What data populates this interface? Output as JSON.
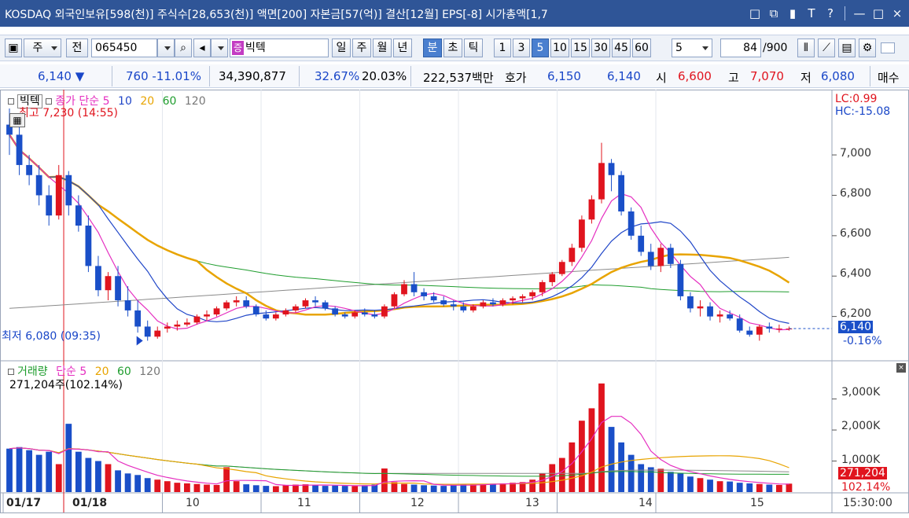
{
  "titlebar": {
    "title": "KOSDAQ 외국인보유[598(천)] 주식수[28,653(천)] 액면[200] 자본금[57(억)] 결산[12월] EPS[-8] 시가총액[1,7",
    "buttons": [
      "□",
      "⧉",
      "▮",
      "T",
      "?",
      "—",
      "□",
      "×"
    ]
  },
  "toolbar": {
    "mode_item": "주",
    "all_label": "전",
    "code": "065450",
    "stock_badge": "증",
    "stock_name": "빅텍",
    "periods": [
      "일",
      "주",
      "월",
      "년",
      "분",
      "초",
      "틱"
    ],
    "active_period": "분",
    "intervals": [
      "1",
      "3",
      "5",
      "10",
      "15",
      "30",
      "45",
      "60"
    ],
    "active_interval": "5",
    "interval_value": "5",
    "count": "84",
    "count_total": "/900"
  },
  "quote": {
    "price": "6,140 ▼",
    "change": "760 -11.01%",
    "volume": "34,390,877",
    "ratio1": "32.67%",
    "ratio2": "20.03%",
    "amount": "222,537백만",
    "hoga_label": "호가",
    "ask": "6,150",
    "bid": "6,140",
    "open_label": "시",
    "open": "6,600",
    "high_label": "고",
    "high": "7,070",
    "low_label": "저",
    "low": "6,080",
    "trade_label": "매수"
  },
  "colors": {
    "up": "#e0141e",
    "down": "#1a4fc8",
    "ma5": "#e52ec0",
    "ma10": "#2046c8",
    "ma20": "#e8a400",
    "ma60": "#1f9d2e",
    "ma120": "#8a8a8a"
  },
  "chart": {
    "price_legend": {
      "name": "빅텍",
      "item": "종가 단순",
      "periods": [
        "5",
        "10",
        "20",
        "60",
        "120"
      ]
    },
    "max_label": "최고 7,230 (14:55)",
    "min_label": "최저 6,080 (09:35)",
    "lc": "LC:0.99",
    "hc": "HC:-15.08",
    "current_price_tag": "6,140",
    "current_pct_tag": "-0.16%",
    "price_axis": [
      "7,000",
      "6,800",
      "6,600",
      "6,400",
      "6,200"
    ],
    "volume_legend": {
      "name": "거래량",
      "item": "단순",
      "periods": [
        "5",
        "20",
        "60",
        "120"
      ]
    },
    "volume_value": "271,204주(102.14%)",
    "volume_axis": [
      "3,000K",
      "2,000K",
      "1,000K"
    ],
    "current_volume_tag": "271,204",
    "current_volume_pct": "102.14%",
    "date_axis": [
      "01/17",
      "01/18",
      "10",
      "11",
      "12",
      "13",
      "14",
      "15"
    ],
    "time_label": "15:30:00"
  },
  "chart_data": {
    "type": "candlestick",
    "interval": "5분",
    "price_ylim": [
      6000,
      7300
    ],
    "volume_ylim": [
      0,
      3800
    ],
    "candles": [
      [
        7150,
        7230,
        7000,
        7100
      ],
      [
        7100,
        7150,
        6900,
        6950
      ],
      [
        6950,
        7000,
        6850,
        6900
      ],
      [
        6900,
        6950,
        6750,
        6800
      ],
      [
        6800,
        6850,
        6650,
        6700
      ],
      [
        6700,
        6950,
        6680,
        6900
      ],
      [
        6900,
        6920,
        6700,
        6750
      ],
      [
        6750,
        6800,
        6620,
        6650
      ],
      [
        6650,
        6700,
        6420,
        6450
      ],
      [
        6450,
        6500,
        6300,
        6330
      ],
      [
        6330,
        6420,
        6280,
        6400
      ],
      [
        6400,
        6450,
        6250,
        6280
      ],
      [
        6280,
        6350,
        6200,
        6230
      ],
      [
        6230,
        6280,
        6120,
        6150
      ],
      [
        6150,
        6180,
        6080,
        6100
      ],
      [
        6100,
        6150,
        6090,
        6130
      ],
      [
        6140,
        6170,
        6120,
        6150
      ],
      [
        6150,
        6180,
        6130,
        6160
      ],
      [
        6160,
        6190,
        6150,
        6170
      ],
      [
        6170,
        6210,
        6160,
        6200
      ],
      [
        6200,
        6230,
        6180,
        6210
      ],
      [
        6210,
        6250,
        6200,
        6240
      ],
      [
        6240,
        6280,
        6230,
        6270
      ],
      [
        6270,
        6300,
        6250,
        6280
      ],
      [
        6280,
        6300,
        6240,
        6250
      ],
      [
        6250,
        6260,
        6200,
        6210
      ],
      [
        6210,
        6230,
        6180,
        6190
      ],
      [
        6190,
        6220,
        6180,
        6210
      ],
      [
        6210,
        6240,
        6200,
        6230
      ],
      [
        6230,
        6260,
        6220,
        6250
      ],
      [
        6250,
        6290,
        6240,
        6280
      ],
      [
        6280,
        6300,
        6250,
        6270
      ],
      [
        6270,
        6280,
        6230,
        6240
      ],
      [
        6240,
        6250,
        6200,
        6210
      ],
      [
        6210,
        6220,
        6190,
        6200
      ],
      [
        6200,
        6230,
        6190,
        6220
      ],
      [
        6220,
        6240,
        6200,
        6210
      ],
      [
        6210,
        6230,
        6190,
        6200
      ],
      [
        6200,
        6260,
        6190,
        6250
      ],
      [
        6250,
        6320,
        6240,
        6310
      ],
      [
        6310,
        6380,
        6300,
        6360
      ],
      [
        6360,
        6420,
        6300,
        6320
      ],
      [
        6320,
        6340,
        6280,
        6300
      ],
      [
        6300,
        6320,
        6270,
        6280
      ],
      [
        6280,
        6300,
        6250,
        6260
      ],
      [
        6260,
        6280,
        6230,
        6250
      ],
      [
        6250,
        6270,
        6220,
        6230
      ],
      [
        6230,
        6260,
        6220,
        6250
      ],
      [
        6250,
        6280,
        6240,
        6270
      ],
      [
        6270,
        6290,
        6250,
        6260
      ],
      [
        6260,
        6290,
        6250,
        6280
      ],
      [
        6280,
        6300,
        6260,
        6290
      ],
      [
        6290,
        6310,
        6270,
        6300
      ],
      [
        6300,
        6330,
        6280,
        6320
      ],
      [
        6320,
        6380,
        6300,
        6370
      ],
      [
        6370,
        6420,
        6350,
        6410
      ],
      [
        6410,
        6480,
        6400,
        6470
      ],
      [
        6470,
        6560,
        6450,
        6540
      ],
      [
        6540,
        6700,
        6520,
        6680
      ],
      [
        6680,
        6800,
        6660,
        6780
      ],
      [
        6780,
        7060,
        6760,
        6960
      ],
      [
        6960,
        6980,
        6820,
        6900
      ],
      [
        6900,
        6920,
        6700,
        6720
      ],
      [
        6720,
        6740,
        6580,
        6600
      ],
      [
        6600,
        6650,
        6500,
        6520
      ],
      [
        6520,
        6560,
        6430,
        6450
      ],
      [
        6450,
        6560,
        6420,
        6540
      ],
      [
        6540,
        6560,
        6440,
        6460
      ],
      [
        6460,
        6480,
        6280,
        6300
      ],
      [
        6300,
        6320,
        6220,
        6240
      ],
      [
        6240,
        6280,
        6200,
        6250
      ],
      [
        6250,
        6270,
        6180,
        6200
      ],
      [
        6200,
        6230,
        6170,
        6210
      ],
      [
        6210,
        6230,
        6180,
        6190
      ],
      [
        6190,
        6210,
        6120,
        6130
      ],
      [
        6130,
        6150,
        6100,
        6110
      ],
      [
        6110,
        6160,
        6080,
        6150
      ],
      [
        6150,
        6170,
        6120,
        6140
      ],
      [
        6140,
        6160,
        6120,
        6140
      ],
      [
        6140,
        6150,
        6130,
        6140
      ]
    ],
    "volumes": [
      1400,
      1450,
      1350,
      1200,
      1300,
      900,
      2200,
      1300,
      1100,
      1000,
      900,
      700,
      600,
      550,
      450,
      400,
      350,
      300,
      280,
      260,
      240,
      230,
      800,
      350,
      250,
      220,
      200,
      190,
      230,
      240,
      250,
      220,
      200,
      210,
      200,
      190,
      220,
      240,
      760,
      320,
      260,
      240,
      220,
      210,
      200,
      230,
      250,
      240,
      260,
      270,
      280,
      300,
      320,
      400,
      600,
      900,
      1100,
      1600,
      2300,
      2700,
      3500,
      2100,
      1600,
      1200,
      900,
      800,
      750,
      650,
      600,
      500,
      450,
      400,
      350,
      340,
      300,
      280,
      260,
      240,
      230,
      271
    ]
  }
}
